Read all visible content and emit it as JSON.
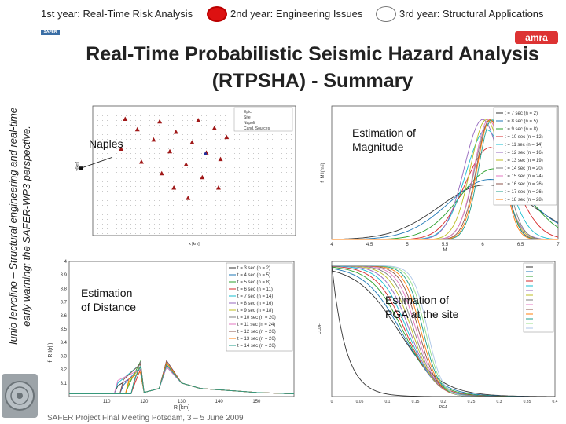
{
  "nav": {
    "items": [
      {
        "text": "1st year: Real-Time Risk Analysis"
      },
      {
        "text": "2nd year: Engineering Issues"
      },
      {
        "text": "3rd year: Structural Applications"
      }
    ],
    "colors": {
      "active": "#dd1111",
      "inactive_border": "#777777"
    }
  },
  "sidebar": {
    "line1": "Iunio Iervolino – Structural engineering and real-time",
    "line2": "early warning: the SAFER-WP3 perspective."
  },
  "logos": {
    "left": "SAFER",
    "right": "amra"
  },
  "slide": {
    "title_line1": "Real-Time Probabilistic Seismic Hazard Analysis",
    "title_line2": "(RTPSHA) - Summary"
  },
  "annotations": {
    "naples": "Naples",
    "magnitude_line1": "Estimation of",
    "magnitude_line2": "Magnitude",
    "distance_line1": "Estimation",
    "distance_line2": "of Distance",
    "pga_line1": "Estimation of",
    "pga_line2": "PGA at the site"
  },
  "footer": {
    "text": "SAFER Project Final Meeting     Potsdam, 3 – 5 June 2009"
  },
  "chart_data": [
    {
      "type": "scatter",
      "ylabel": "y[km]",
      "xlabel": "x [km]",
      "legend": [
        "Epic.",
        "Site",
        "Napoli",
        "Cand. Sources"
      ],
      "stations": [
        [
          0.16,
          0.1
        ],
        [
          0.33,
          0.12
        ],
        [
          0.52,
          0.11
        ],
        [
          0.22,
          0.18
        ],
        [
          0.41,
          0.2
        ],
        [
          0.6,
          0.17
        ],
        [
          0.3,
          0.26
        ],
        [
          0.49,
          0.28
        ],
        [
          0.66,
          0.24
        ],
        [
          0.14,
          0.33
        ],
        [
          0.38,
          0.35
        ],
        [
          0.56,
          0.36
        ],
        [
          0.24,
          0.43
        ],
        [
          0.46,
          0.45
        ],
        [
          0.63,
          0.41
        ],
        [
          0.34,
          0.52
        ],
        [
          0.54,
          0.55
        ],
        [
          0.4,
          0.63
        ],
        [
          0.62,
          0.63
        ],
        [
          0.47,
          0.71
        ]
      ]
    },
    {
      "type": "line",
      "title": "Estimation of Magnitude",
      "xlabel": "M",
      "ylabel": "f_M|I(m|i)",
      "x_ticks": [
        "4",
        "4.5",
        "5",
        "5.5",
        "6",
        "6.5",
        "7"
      ],
      "xlim": [
        4,
        7
      ],
      "series": [
        {
          "name": "t = 7 sec (n = 2)",
          "color": "#333333",
          "peak": 6.05,
          "sigma": 0.62
        },
        {
          "name": "t = 8 sec (n = 5)",
          "color": "#1f77b4",
          "peak": 6.1,
          "sigma": 0.55
        },
        {
          "name": "t = 9 sec (n = 8)",
          "color": "#2ca02c",
          "peak": 6.15,
          "sigma": 0.45
        },
        {
          "name": "t = 10 sec (n = 12)",
          "color": "#d62728",
          "peak": 6.1,
          "sigma": 0.33
        },
        {
          "name": "t = 11 sec (n = 14)",
          "color": "#17becf",
          "peak": 6.05,
          "sigma": 0.27
        },
        {
          "name": "t = 12 sec (n = 16)",
          "color": "#9467bd",
          "peak": 6.0,
          "sigma": 0.24
        },
        {
          "name": "t = 13 sec (n = 19)",
          "color": "#bcbd22",
          "peak": 6.05,
          "sigma": 0.21
        },
        {
          "name": "t = 14 sec (n = 20)",
          "color": "#7f7f7f",
          "peak": 6.1,
          "sigma": 0.2
        },
        {
          "name": "t = 15 sec (n = 24)",
          "color": "#e377c2",
          "peak": 6.08,
          "sigma": 0.19
        },
        {
          "name": "t = 16 sec (n = 26)",
          "color": "#8c564b",
          "peak": 6.1,
          "sigma": 0.18
        },
        {
          "name": "t = 17 sec (n = 26)",
          "color": "#1f9e89",
          "peak": 6.12,
          "sigma": 0.17
        },
        {
          "name": "t = 18 sec (n = 28)",
          "color": "#ff7f0e",
          "peak": 6.1,
          "sigma": 0.17
        }
      ]
    },
    {
      "type": "line",
      "title": "Estimation of Distance",
      "xlabel": "R [km]",
      "ylabel": "f_R|I(r|i)",
      "y_ticks": [
        "3.1",
        "3.2",
        "3.3",
        "3.4",
        "3.5",
        "3.6",
        "3.7",
        "3.8",
        "3.9",
        "4"
      ],
      "x_ticks": [
        "110",
        "120",
        "130",
        "140",
        "150"
      ],
      "xlim": [
        100,
        160
      ],
      "ylim": [
        3.0,
        4.0
      ],
      "series": [
        {
          "name": "t = 3 sec (n = 2)",
          "color": "#333333"
        },
        {
          "name": "t = 4 sec (n = 5)",
          "color": "#1f77b4"
        },
        {
          "name": "t = 5 sec (n = 8)",
          "color": "#2ca02c"
        },
        {
          "name": "t = 6 sec (n = 11)",
          "color": "#d62728"
        },
        {
          "name": "t = 7 sec (n = 14)",
          "color": "#17becf"
        },
        {
          "name": "t = 8 sec (n = 16)",
          "color": "#9467bd"
        },
        {
          "name": "t = 9 sec (n = 18)",
          "color": "#bcbd22"
        },
        {
          "name": "t = 10 sec (n = 20)",
          "color": "#7f7f7f"
        },
        {
          "name": "t = 11 sec (n = 24)",
          "color": "#e377c2"
        },
        {
          "name": "t = 12 sec (n = 26)",
          "color": "#8c564b"
        },
        {
          "name": "t = 13 sec (n = 26)",
          "color": "#ff7f0e"
        },
        {
          "name": "t = 14 sec (n = 26)",
          "color": "#1f9e89"
        }
      ]
    },
    {
      "type": "line",
      "title": "Estimation of PGA at the site",
      "xlabel": "PGA",
      "ylabel": "CCDF",
      "x_ticks": [
        "0",
        "0.05",
        "0.1",
        "0.15",
        "0.2",
        "0.25",
        "0.3",
        "0.35",
        "0.4"
      ],
      "series_count": 14,
      "colors": [
        "#333333",
        "#1f77b4",
        "#2ca02c",
        "#d62728",
        "#17becf",
        "#9467bd",
        "#bcbd22",
        "#7f7f7f",
        "#e377c2",
        "#8c564b",
        "#ff7f0e",
        "#1f9e89",
        "#98df8a",
        "#aec7e8"
      ]
    }
  ]
}
